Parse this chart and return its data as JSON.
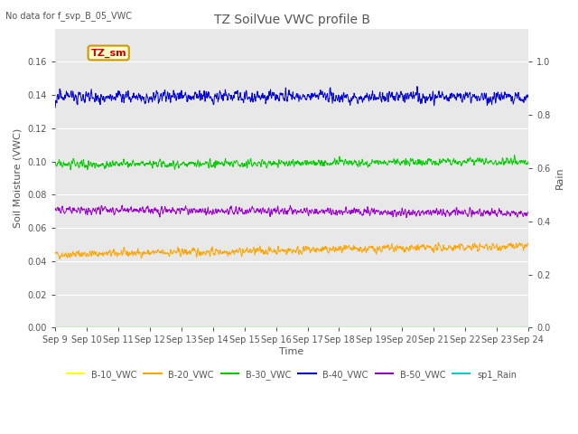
{
  "title": "TZ SoilVue VWC profile B",
  "subtitle": "No data for f_svp_B_05_VWC",
  "xlabel": "Time",
  "ylabel_left": "Soil Moisture (VWC)",
  "ylabel_right": "Rain",
  "annotation": "TZ_sm",
  "n_points": 1440,
  "ylim_left": [
    0.0,
    0.18
  ],
  "ylim_right": [
    0.0,
    1.125
  ],
  "bg_color": "#e8e8e8",
  "fig_color": "#ffffff",
  "series": {
    "B10_VWC": {
      "mean": 0.0,
      "noise": 0.0,
      "color": "#ffff00",
      "label": "B-10_VWC",
      "zorder": 1
    },
    "B20_VWC": {
      "mean": 0.044,
      "trend": 0.005,
      "noise": 0.002,
      "color": "#ffa500",
      "label": "B-20_VWC",
      "zorder": 2
    },
    "B30_VWC": {
      "mean": 0.098,
      "trend": 0.002,
      "noise": 0.002,
      "color": "#00cc00",
      "label": "B-30_VWC",
      "zorder": 3
    },
    "B40_VWC": {
      "mean": 0.139,
      "trend": 0.0,
      "noise": 0.003,
      "color": "#0000dd",
      "label": "B-40_VWC",
      "zorder": 4
    },
    "B50_VWC": {
      "mean": 0.071,
      "trend": -0.002,
      "noise": 0.002,
      "color": "#9900cc",
      "label": "B-50_VWC",
      "zorder": 5
    },
    "sp1_Rain": {
      "mean": 0.0,
      "noise": 0.0,
      "color": "#00cccc",
      "label": "sp1_Rain",
      "zorder": 6
    }
  },
  "xtick_labels": [
    "Sep 9",
    "Sep 10",
    "Sep 11",
    "Sep 12",
    "Sep 13",
    "Sep 14",
    "Sep 15",
    "Sep 16",
    "Sep 17",
    "Sep 18",
    "Sep 19",
    "Sep 20",
    "Sep 21",
    "Sep 22",
    "Sep 23",
    "Sep 24"
  ],
  "yticks_left": [
    0.0,
    0.02,
    0.04,
    0.06,
    0.08,
    0.1,
    0.12,
    0.14,
    0.16
  ],
  "yticks_right": [
    0.0,
    0.2,
    0.4,
    0.6,
    0.8,
    1.0
  ],
  "grid_color": "#ffffff",
  "tick_color": "#555555",
  "label_color": "#555555",
  "font_size": 8,
  "title_font_size": 10,
  "annotation_bg": "#ffffcc",
  "annotation_border": "#cc9900",
  "annotation_text_color": "#cc0000"
}
